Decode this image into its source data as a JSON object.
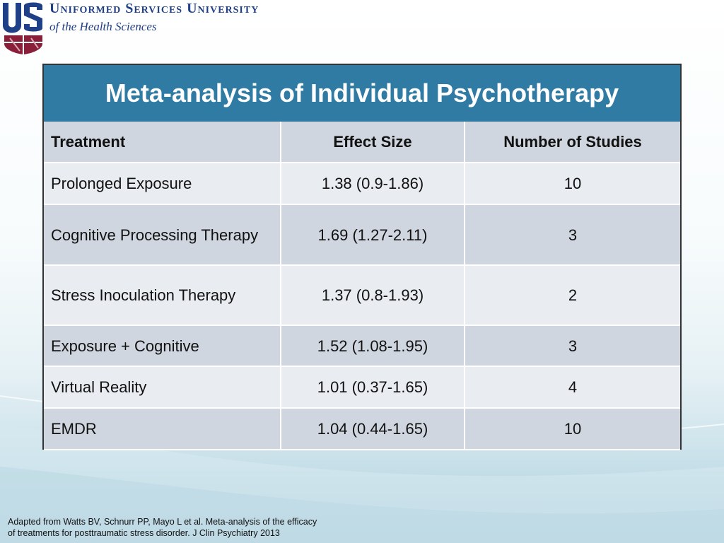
{
  "logo": {
    "mark": "USU",
    "line1": "Uniformed Services University",
    "line2": "of the Health Sciences"
  },
  "table": {
    "title": "Meta-analysis of Individual Psychotherapy",
    "headers": [
      "Treatment",
      "Effect Size",
      "Number of Studies"
    ],
    "rows": [
      [
        "Prolonged Exposure",
        "1.38 (0.9-1.86)",
        "10"
      ],
      [
        "Cognitive Processing Therapy",
        "1.69 (1.27-2.11)",
        "3"
      ],
      [
        "Stress Inoculation Therapy",
        "1.37 (0.8-1.93)",
        "2"
      ],
      [
        "Exposure + Cognitive",
        "1.52 (1.08-1.95)",
        "3"
      ],
      [
        "Virtual Reality",
        "1.01 (0.37-1.65)",
        "4"
      ],
      [
        "EMDR",
        "1.04 (0.44-1.65)",
        "10"
      ]
    ]
  },
  "footnote": {
    "line1": "Adapted from Watts BV, Schnurr PP, Mayo L et al. Meta-analysis of the efficacy",
    "line2": "of treatments for posttraumatic stress disorder. J Clin Psychiatry 2013"
  },
  "colors": {
    "title_band": "#2f7ba3",
    "header_row": "#cfd6df",
    "row_light": "#e9ecf1",
    "row_dark": "#cfd6df",
    "logo_blue": "#1f3f86",
    "logo_maroon": "#8a1f3a"
  }
}
